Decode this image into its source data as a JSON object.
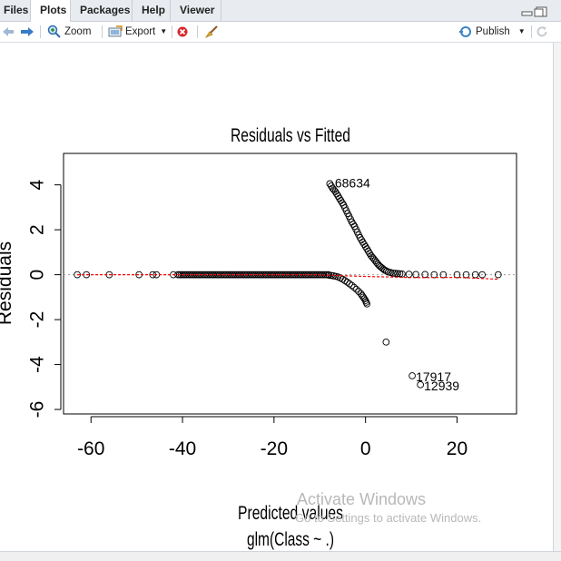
{
  "tabs": [
    {
      "label": "Files",
      "active": false
    },
    {
      "label": "Plots",
      "active": true
    },
    {
      "label": "Packages",
      "active": false
    },
    {
      "label": "Help",
      "active": false
    },
    {
      "label": "Viewer",
      "active": false
    }
  ],
  "toolbar": {
    "zoom_label": "Zoom",
    "export_label": "Export",
    "publish_label": "Publish"
  },
  "icons": [
    "back-arrow-icon",
    "forward-arrow-icon",
    "zoom-icon",
    "export-icon",
    "delete-plot-icon",
    "broom-icon",
    "publish-icon",
    "refresh-icon",
    "minimize-icon",
    "maximize-icon"
  ],
  "colors": {
    "points": "#000000",
    "smooth_line": "#ff0000",
    "zero_line": "#999999"
  },
  "watermark": {
    "line1": "Activate Windows",
    "line2": "Go to Settings to activate Windows."
  },
  "chart_data": {
    "type": "scatter",
    "title": "Residuals vs Fitted",
    "xlabel": "Predicted values",
    "xlabel2": "glm(Class ~ .)",
    "ylabel": "Residuals",
    "xlim": [
      -66,
      33
    ],
    "ylim": [
      -6.2,
      5.4
    ],
    "xticks": [
      -60,
      -40,
      -20,
      0,
      20
    ],
    "yticks": [
      -6,
      -4,
      -2,
      0,
      2,
      4
    ],
    "reference_line": {
      "y": 0,
      "style": "dotted",
      "color": "#999999"
    },
    "annotations": [
      {
        "text": "68634",
        "x": -7.5,
        "y": 4.0
      },
      {
        "text": "17917",
        "x": 10.2,
        "y": -4.5
      },
      {
        "text": "12939",
        "x": 12.0,
        "y": -4.9
      }
    ],
    "smooth_line": [
      [
        -63,
        0
      ],
      [
        -40,
        0
      ],
      [
        -20,
        0
      ],
      [
        -10,
        -0.01
      ],
      [
        0,
        -0.08
      ],
      [
        5,
        -0.1
      ],
      [
        10,
        -0.13
      ],
      [
        20,
        -0.12
      ],
      [
        29,
        -0.2
      ]
    ],
    "points_zero_band": {
      "x_from": -41,
      "x_to": -8,
      "y": 0.0
    },
    "points_sparse": [
      [
        -63,
        0
      ],
      [
        -61,
        0
      ],
      [
        -56,
        0
      ],
      [
        -49.5,
        0
      ],
      [
        -46.5,
        0
      ],
      [
        -45.7,
        0
      ],
      [
        -42,
        0
      ]
    ],
    "points_upper_curve": [
      [
        -7.8,
        4.05
      ],
      [
        -7.2,
        3.85
      ],
      [
        -6.6,
        3.7
      ],
      [
        -6.0,
        3.5
      ],
      [
        -5.4,
        3.3
      ],
      [
        -4.8,
        3.1
      ],
      [
        -4.2,
        2.85
      ],
      [
        -3.6,
        2.6
      ],
      [
        -3.0,
        2.35
      ],
      [
        -2.4,
        2.15
      ],
      [
        -1.8,
        1.9
      ],
      [
        -1.2,
        1.65
      ],
      [
        -0.6,
        1.45
      ],
      [
        0,
        1.25
      ],
      [
        0.6,
        1.05
      ],
      [
        1.2,
        0.85
      ],
      [
        1.8,
        0.7
      ],
      [
        2.4,
        0.55
      ],
      [
        3.0,
        0.4
      ],
      [
        3.6,
        0.3
      ],
      [
        4.2,
        0.2
      ],
      [
        5.0,
        0.12
      ],
      [
        6.0,
        0.07
      ],
      [
        7.0,
        0.05
      ],
      [
        8.0,
        0.03
      ],
      [
        9.5,
        0.02
      ],
      [
        11,
        0.01
      ],
      [
        13,
        0.01
      ],
      [
        15,
        0.0
      ],
      [
        17,
        0.0
      ],
      [
        20,
        0.0
      ],
      [
        22,
        0.0
      ],
      [
        24,
        0.0
      ],
      [
        25.5,
        0.0
      ],
      [
        29,
        0.0
      ]
    ],
    "points_lower_curve": [
      [
        -8,
        -0.02
      ],
      [
        -7,
        -0.05
      ],
      [
        -6,
        -0.1
      ],
      [
        -5,
        -0.2
      ],
      [
        -4,
        -0.33
      ],
      [
        -3,
        -0.48
      ],
      [
        -2,
        -0.65
      ],
      [
        -1,
        -0.85
      ],
      [
        -0.5,
        -1.0
      ],
      [
        0,
        -1.15
      ],
      [
        0.3,
        -1.3
      ]
    ],
    "points_outliers": [
      [
        4.5,
        -3.0
      ],
      [
        10.2,
        -4.5
      ],
      [
        12.0,
        -4.9
      ]
    ]
  }
}
